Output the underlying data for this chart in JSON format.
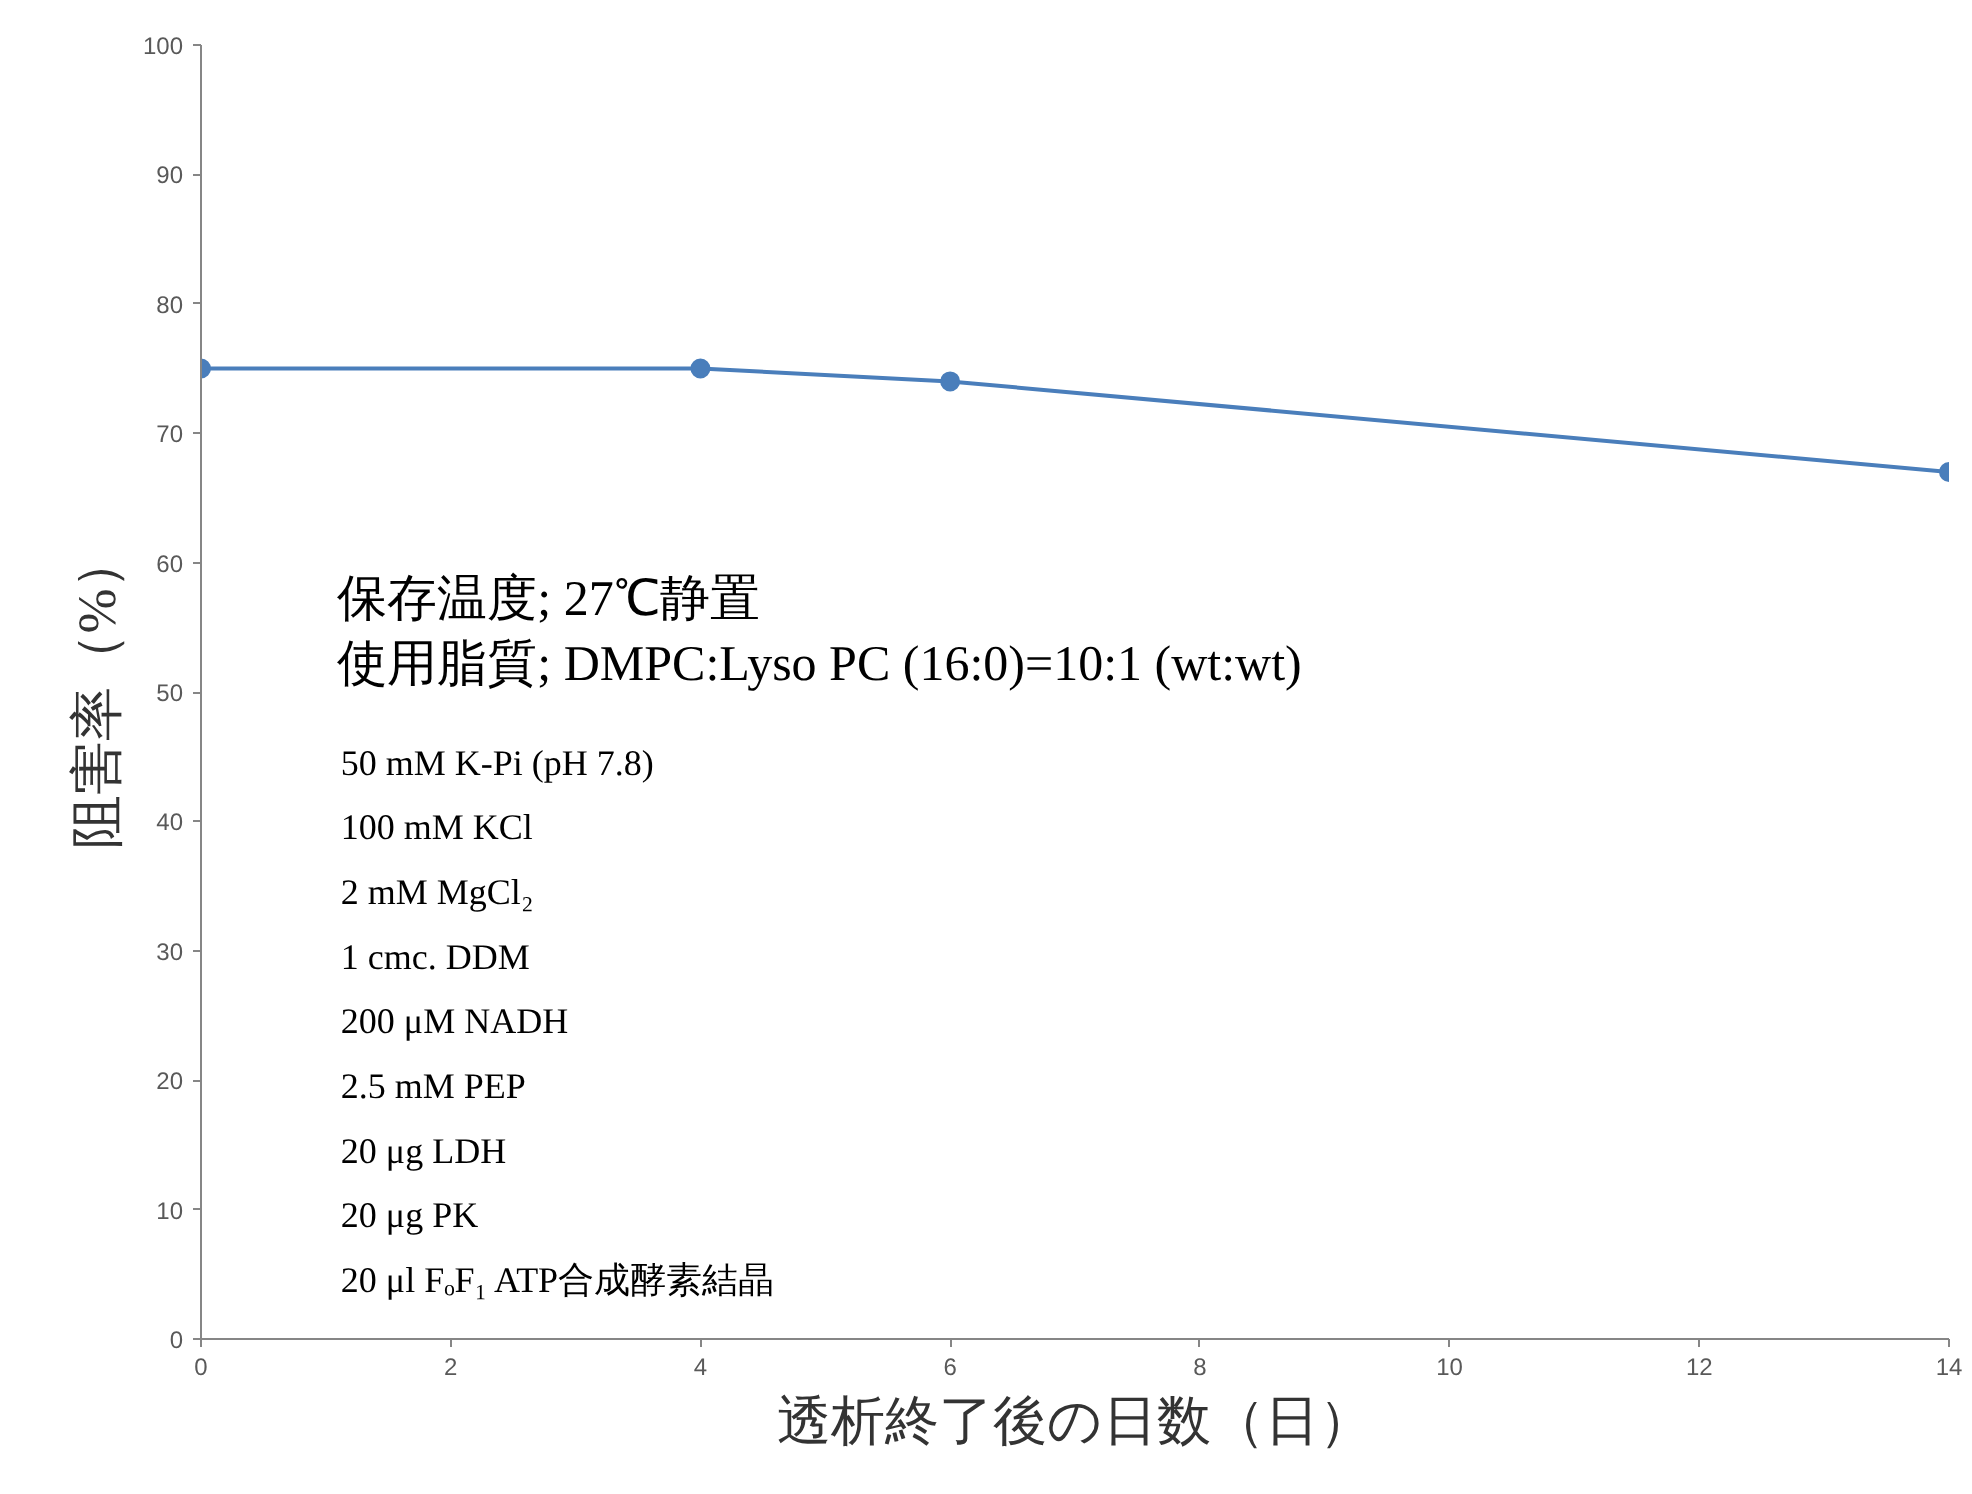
{
  "chart_data": {
    "type": "line",
    "xlabel": "透析終了後の日数（日）",
    "ylabel": "阻害率（%）",
    "x": [
      0,
      4,
      6,
      14
    ],
    "series": [
      {
        "color": "#4a7ebb",
        "values": [
          75,
          75,
          74,
          67
        ]
      }
    ],
    "xlim": [
      0,
      14
    ],
    "xticks": [
      0,
      2,
      4,
      6,
      8,
      10,
      12,
      14
    ],
    "ylim": [
      0,
      100
    ],
    "yticks": [
      0,
      10,
      20,
      30,
      40,
      50,
      60,
      70,
      80,
      90,
      100
    ],
    "grid": false,
    "marker": "circle",
    "line_style": "solid",
    "annotations": [
      "保存温度; 27℃静置",
      "使用脂質; DMPC:Lyso PC (16:0)=10:1 (wt:wt)",
      "50 mM K-Pi (pH 7.8)",
      "100 mM KCl",
      "2 mM MgCl₂",
      "1 cmc. DDM",
      "200 μM NADH",
      "2.5 mM PEP",
      "20 μg LDH",
      "20 μg PK",
      "20 μl FₒF₁ ATP合成酵素結晶"
    ]
  }
}
